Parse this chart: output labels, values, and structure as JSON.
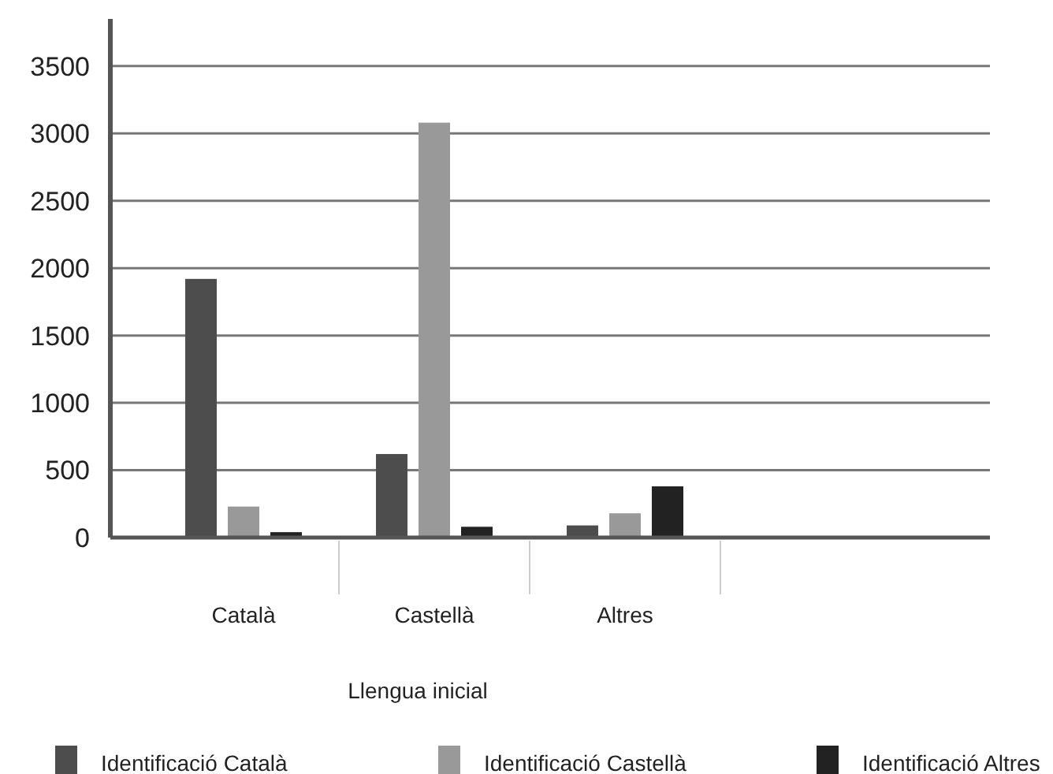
{
  "chart_data": {
    "type": "bar",
    "xlabel": "Llengua inicial",
    "categories": [
      "Català",
      "Castellà",
      "Altres",
      null
    ],
    "series": [
      {
        "name": "Identificació Català",
        "color": "#4d4d4d",
        "values": [
          1920,
          620,
          90,
          null
        ]
      },
      {
        "name": "Identificació Castellà",
        "color": "#999999",
        "values": [
          230,
          3080,
          180,
          null
        ]
      },
      {
        "name": "Identificació Altres",
        "color": "#222222",
        "values": [
          40,
          80,
          380,
          null
        ]
      }
    ],
    "ylim": [
      0,
      3850
    ],
    "yticks": [
      0,
      500,
      1000,
      1500,
      2000,
      2500,
      3000,
      3500
    ],
    "grid": "y",
    "legend": "bottom"
  }
}
